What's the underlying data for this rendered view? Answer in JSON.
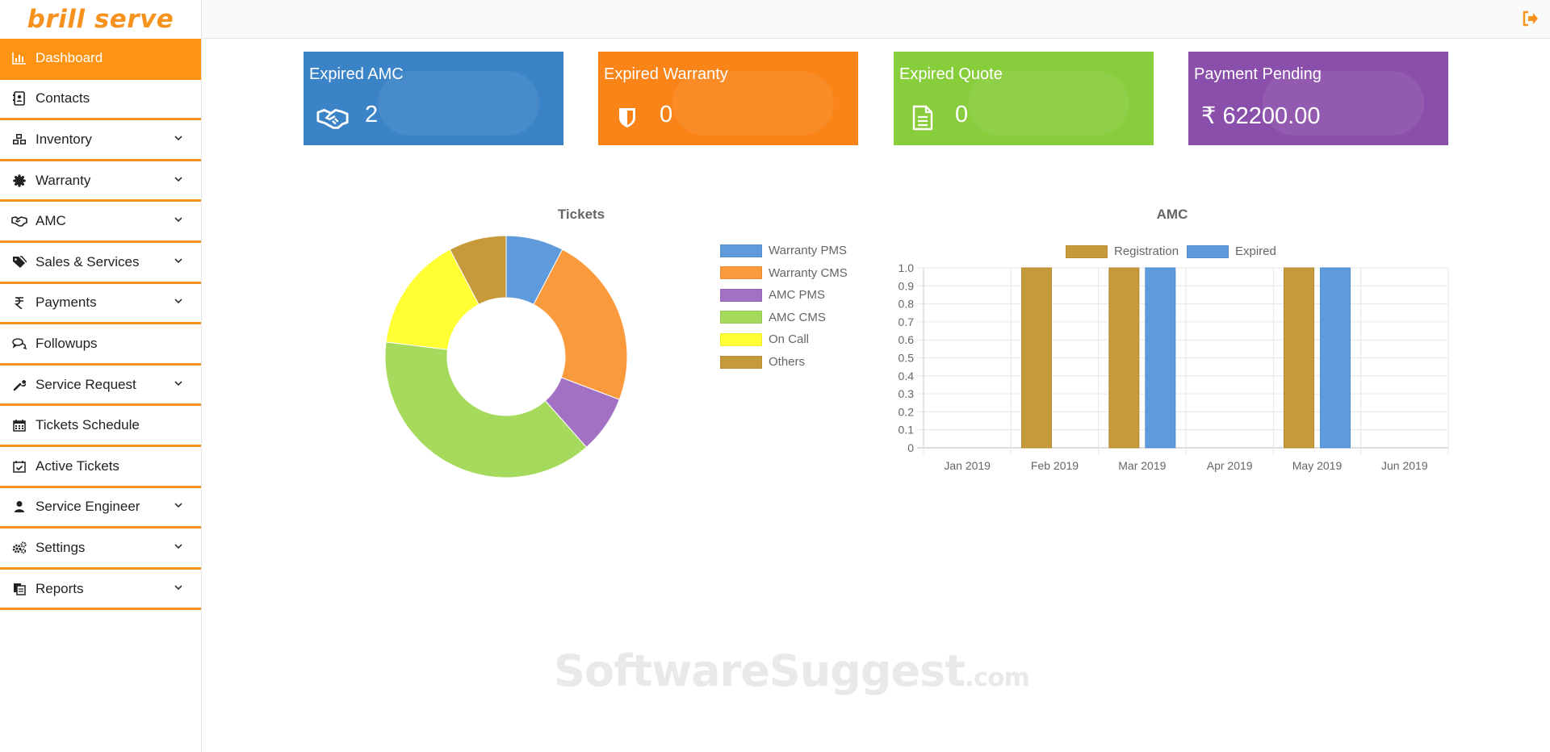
{
  "app": {
    "logo_text": "brill serve"
  },
  "sidebar": {
    "items": [
      {
        "label": "Dashboard",
        "icon": "bar-chart-icon",
        "active": true,
        "has_submenu": false
      },
      {
        "label": "Contacts",
        "icon": "contact-card-icon",
        "active": false,
        "has_submenu": false
      },
      {
        "label": "Inventory",
        "icon": "cubes-icon",
        "active": false,
        "has_submenu": true
      },
      {
        "label": "Warranty",
        "icon": "certificate-icon",
        "active": false,
        "has_submenu": true
      },
      {
        "label": "AMC",
        "icon": "handshake-icon",
        "active": false,
        "has_submenu": true
      },
      {
        "label": "Sales & Services",
        "icon": "tags-icon",
        "active": false,
        "has_submenu": true
      },
      {
        "label": "Payments",
        "icon": "rupee-icon",
        "active": false,
        "has_submenu": true
      },
      {
        "label": "Followups",
        "icon": "comments-icon",
        "active": false,
        "has_submenu": false
      },
      {
        "label": "Service Request",
        "icon": "wrench-icon",
        "active": false,
        "has_submenu": true
      },
      {
        "label": "Tickets Schedule",
        "icon": "calendar-icon",
        "active": false,
        "has_submenu": false
      },
      {
        "label": "Active Tickets",
        "icon": "calendar-check-icon",
        "active": false,
        "has_submenu": false
      },
      {
        "label": "Service Engineer",
        "icon": "user-icon",
        "active": false,
        "has_submenu": true
      },
      {
        "label": "Settings",
        "icon": "cogs-icon",
        "active": false,
        "has_submenu": true
      },
      {
        "label": "Reports",
        "icon": "files-icon",
        "active": false,
        "has_submenu": true
      }
    ]
  },
  "cards": [
    {
      "title": "Expired AMC",
      "value": "2",
      "icon": "handshake-icon",
      "color": "#3b83c7"
    },
    {
      "title": "Expired Warranty",
      "value": "0",
      "icon": "shield-icon",
      "color": "#fa8418"
    },
    {
      "title": "Expired Quote",
      "value": "0",
      "icon": "file-text-icon",
      "color": "#88cd3c"
    },
    {
      "title": "Payment Pending",
      "value": "₹ 62200.00",
      "icon": "rupee-icon",
      "color": "#8a4faa"
    }
  ],
  "chart_data": [
    {
      "type": "pie",
      "variant": "doughnut",
      "title": "Tickets",
      "legend_position": "right",
      "labels": [
        "Warranty PMS",
        "Warranty CMS",
        "AMC PMS",
        "AMC CMS",
        "On Call",
        "Others"
      ],
      "values": [
        1,
        3,
        1,
        5,
        2,
        1
      ],
      "colors": [
        "#5f9bdc",
        "#fa9a3c",
        "#a271c4",
        "#a5da5c",
        "#ffff33",
        "#c6993a"
      ]
    },
    {
      "type": "bar",
      "title": "AMC",
      "legend_position": "top",
      "categories": [
        "Jan 2019",
        "Feb 2019",
        "Mar 2019",
        "Apr 2019",
        "May 2019",
        "Jun 2019"
      ],
      "series": [
        {
          "name": "Registration",
          "values": [
            0,
            1,
            1,
            0,
            1,
            0
          ],
          "color": "#c6993a"
        },
        {
          "name": "Expired",
          "values": [
            0,
            0,
            1,
            0,
            1,
            0
          ],
          "color": "#5f9bdc"
        }
      ],
      "ylim": [
        0,
        1
      ],
      "yticks": [
        "1.0",
        "0.9",
        "0.8",
        "0.7",
        "0.6",
        "0.5",
        "0.4",
        "0.3",
        "0.2",
        "0.1",
        "0"
      ],
      "grid": true
    }
  ],
  "watermark": {
    "main": "SoftwareSuggest",
    "suffix": ".com"
  }
}
